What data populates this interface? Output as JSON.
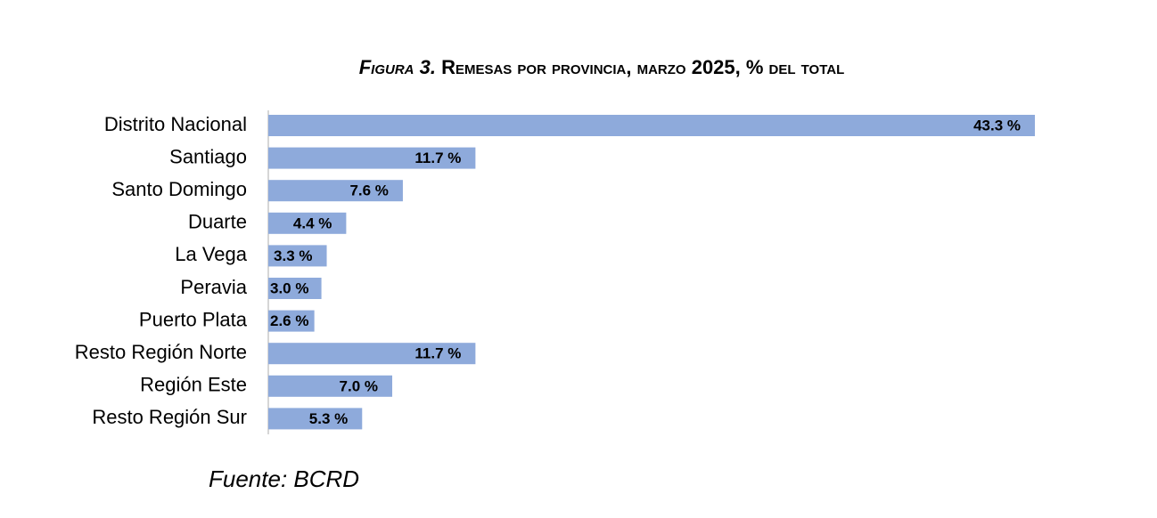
{
  "chart_data": {
    "type": "bar",
    "orientation": "horizontal",
    "title_label": "Figura 3.",
    "title": "Remesas por provincia, marzo 2025, % del total",
    "categories": [
      "Distrito Nacional",
      "Santiago",
      "Santo Domingo",
      "Duarte",
      "La Vega",
      "Peravia",
      "Puerto Plata",
      "Resto Región Norte",
      "Región Este",
      "Resto Región Sur"
    ],
    "values": [
      43.3,
      11.7,
      7.6,
      4.4,
      3.3,
      3.0,
      2.6,
      11.7,
      7.0,
      5.3
    ],
    "value_labels": [
      "43.3 %",
      "11.7 %",
      "7.6 %",
      "4.4 %",
      "3.3 %",
      "3.0 %",
      "2.6 %",
      "11.7 %",
      "7.0 %",
      "5.3 %"
    ],
    "color": "#8eaadb",
    "source": "Fuente: BCRD"
  }
}
